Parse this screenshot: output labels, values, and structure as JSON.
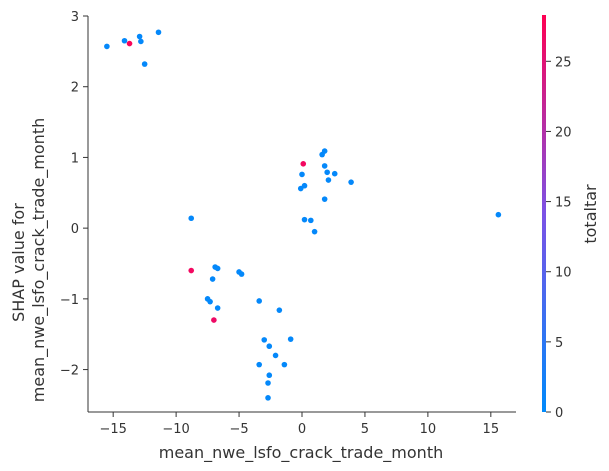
{
  "chart_data": {
    "type": "scatter",
    "xlabel": "mean_nwe_lsfo_crack_trade_month",
    "ylabel_lines": [
      "SHAP value for",
      "mean_nwe_lsfo_crack_trade_month"
    ],
    "xlim": [
      -17,
      17
    ],
    "ylim": [
      -2.6,
      3.0
    ],
    "x_ticks": [
      -15,
      -10,
      -5,
      0,
      5,
      10,
      15
    ],
    "x_tick_labels": [
      "−15",
      "−10",
      "−5",
      "0",
      "5",
      "10",
      "15"
    ],
    "y_ticks": [
      -2,
      -1,
      0,
      1,
      2,
      3
    ],
    "y_tick_labels": [
      "−2",
      "−1",
      "0",
      "1",
      "2",
      "3"
    ],
    "colorbar": {
      "label": "totaltar",
      "range": [
        0,
        28.3
      ],
      "ticks": [
        0,
        5,
        10,
        15,
        20,
        25
      ],
      "tick_labels": [
        "0",
        "5",
        "10",
        "15",
        "20",
        "25"
      ],
      "color_low": "#008afb",
      "color_mid": "#7c52e6",
      "color_high": "#ff0052"
    },
    "points": [
      {
        "x": -15.5,
        "y": 2.57,
        "c": 0.5
      },
      {
        "x": -14.1,
        "y": 2.65,
        "c": 0.5
      },
      {
        "x": -13.7,
        "y": 2.61,
        "c": 27.5
      },
      {
        "x": -12.9,
        "y": 2.71,
        "c": 0.5
      },
      {
        "x": -12.8,
        "y": 2.64,
        "c": 0.5
      },
      {
        "x": -12.5,
        "y": 2.32,
        "c": 0.5
      },
      {
        "x": -11.4,
        "y": 2.77,
        "c": 0.5
      },
      {
        "x": -8.8,
        "y": 0.14,
        "c": 0.5
      },
      {
        "x": -8.8,
        "y": -0.6,
        "c": 27.0
      },
      {
        "x": -7.5,
        "y": -1.0,
        "c": 0.5
      },
      {
        "x": -7.3,
        "y": -1.04,
        "c": 0.5
      },
      {
        "x": -7.1,
        "y": -0.72,
        "c": 0.5
      },
      {
        "x": -6.9,
        "y": -0.55,
        "c": 0.5
      },
      {
        "x": -6.7,
        "y": -0.57,
        "c": 0.5
      },
      {
        "x": -7.0,
        "y": -1.3,
        "c": 26.5
      },
      {
        "x": -6.7,
        "y": -1.13,
        "c": 0.5
      },
      {
        "x": -5.0,
        "y": -0.62,
        "c": 0.5
      },
      {
        "x": -4.8,
        "y": -0.65,
        "c": 0.5
      },
      {
        "x": -3.4,
        "y": -1.03,
        "c": 0.5
      },
      {
        "x": -3.0,
        "y": -1.58,
        "c": 0.5
      },
      {
        "x": -3.4,
        "y": -1.93,
        "c": 0.5
      },
      {
        "x": -2.6,
        "y": -1.67,
        "c": 0.5
      },
      {
        "x": -2.1,
        "y": -1.8,
        "c": 0.5
      },
      {
        "x": -2.6,
        "y": -2.08,
        "c": 0.5
      },
      {
        "x": -2.7,
        "y": -2.19,
        "c": 0.5
      },
      {
        "x": -2.7,
        "y": -2.4,
        "c": 0.5
      },
      {
        "x": -1.8,
        "y": -1.16,
        "c": 0.5
      },
      {
        "x": -1.4,
        "y": -1.93,
        "c": 0.5
      },
      {
        "x": -0.9,
        "y": -1.57,
        "c": 0.5
      },
      {
        "x": 0.1,
        "y": 0.91,
        "c": 27.0
      },
      {
        "x": 0.0,
        "y": 0.76,
        "c": 0.5
      },
      {
        "x": -0.1,
        "y": 0.56,
        "c": 0.5
      },
      {
        "x": 0.2,
        "y": 0.6,
        "c": 0.5
      },
      {
        "x": 0.2,
        "y": 0.12,
        "c": 0.5
      },
      {
        "x": 0.7,
        "y": 0.11,
        "c": 0.5
      },
      {
        "x": 1.0,
        "y": -0.05,
        "c": 0.5
      },
      {
        "x": 1.6,
        "y": 1.04,
        "c": 0.5
      },
      {
        "x": 1.8,
        "y": 1.09,
        "c": 0.5
      },
      {
        "x": 1.8,
        "y": 0.88,
        "c": 0.5
      },
      {
        "x": 2.0,
        "y": 0.79,
        "c": 0.5
      },
      {
        "x": 2.1,
        "y": 0.68,
        "c": 0.5
      },
      {
        "x": 1.8,
        "y": 0.41,
        "c": 0.5
      },
      {
        "x": 2.6,
        "y": 0.77,
        "c": 0.5
      },
      {
        "x": 3.9,
        "y": 0.65,
        "c": 0.5
      },
      {
        "x": 15.6,
        "y": 0.19,
        "c": 0.5
      }
    ]
  }
}
